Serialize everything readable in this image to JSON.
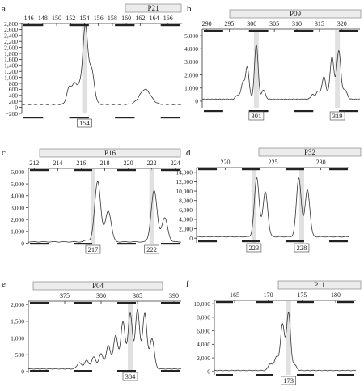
{
  "chart_data": [
    {
      "panel_label": "a",
      "type": "line",
      "marker": "P21",
      "xlim": [
        145,
        168
      ],
      "ylim": [
        -200,
        2800
      ],
      "x_ticks": [
        146,
        148,
        150,
        152,
        154,
        156,
        158,
        160,
        162,
        164,
        166
      ],
      "y_ticks": [
        -200,
        0,
        200,
        400,
        600,
        800,
        1000,
        1200,
        1400,
        1600,
        1800,
        2000,
        2200,
        2400,
        2600,
        2800
      ],
      "y_tick_labels": [
        "−200",
        "0",
        "200",
        "400",
        "600",
        "800",
        "1,000",
        "1,200",
        "1,400",
        "1,600",
        "1,800",
        "2,000",
        "2,200",
        "2,400",
        "2,600",
        "2,800"
      ],
      "peaks": [
        {
          "x": 151.8,
          "y": 550,
          "w": 0.35
        },
        {
          "x": 152.6,
          "y": 650,
          "w": 0.35
        },
        {
          "x": 153.3,
          "y": 500,
          "w": 0.3
        },
        {
          "x": 154.1,
          "y": 2550,
          "w": 0.35
        },
        {
          "x": 155.0,
          "y": 1150,
          "w": 0.4
        },
        {
          "x": 162.7,
          "y": 500,
          "w": 0.8
        }
      ],
      "baseline": 100,
      "allele_calls": [
        154
      ]
    },
    {
      "panel_label": "b",
      "type": "line",
      "marker": "P09",
      "xlim": [
        289,
        324
      ],
      "ylim": [
        -500,
        5500
      ],
      "x_ticks": [
        290,
        295,
        300,
        305,
        310,
        315,
        320
      ],
      "y_ticks": [
        0,
        1000,
        2000,
        3000,
        4000,
        5000
      ],
      "y_tick_labels": [
        "0",
        "1,000",
        "2,000",
        "3,000",
        "4,000",
        "5,000"
      ],
      "peaks": [
        {
          "x": 296.8,
          "y": 300,
          "w": 0.4
        },
        {
          "x": 298.0,
          "y": 1200,
          "w": 0.4
        },
        {
          "x": 299.0,
          "y": 2400,
          "w": 0.4
        },
        {
          "x": 301.0,
          "y": 4200,
          "w": 0.4
        },
        {
          "x": 302.6,
          "y": 700,
          "w": 0.4
        },
        {
          "x": 313.5,
          "y": 350,
          "w": 0.4
        },
        {
          "x": 314.7,
          "y": 600,
          "w": 0.4
        },
        {
          "x": 316.0,
          "y": 1700,
          "w": 0.45
        },
        {
          "x": 317.8,
          "y": 3200,
          "w": 0.45
        },
        {
          "x": 319.3,
          "y": 3700,
          "w": 0.45
        },
        {
          "x": 320.7,
          "y": 700,
          "w": 0.45
        }
      ],
      "baseline": 150,
      "allele_calls": [
        301,
        319
      ]
    },
    {
      "panel_label": "c",
      "type": "line",
      "marker": "P16",
      "xlim": [
        211.5,
        224.5
      ],
      "ylim": [
        -100,
        6300
      ],
      "x_ticks": [
        212,
        214,
        216,
        218,
        220,
        222,
        224
      ],
      "y_ticks": [
        0,
        1000,
        2000,
        3000,
        4000,
        5000,
        6000
      ],
      "y_tick_labels": [
        "0",
        "1,000",
        "2,000",
        "3,000",
        "4,000",
        "5,000",
        "6,000"
      ],
      "peaks": [
        {
          "x": 216.5,
          "y": 150,
          "w": 0.2
        },
        {
          "x": 217.4,
          "y": 5100,
          "w": 0.25
        },
        {
          "x": 218.3,
          "y": 2600,
          "w": 0.25
        },
        {
          "x": 222.2,
          "y": 4300,
          "w": 0.25
        },
        {
          "x": 223.1,
          "y": 2000,
          "w": 0.25
        }
      ],
      "baseline": 120,
      "allele_calls": [
        217,
        222
      ]
    },
    {
      "panel_label": "d",
      "type": "line",
      "marker": "P32",
      "xlim": [
        217,
        233
      ],
      "ylim": [
        -1000,
        15000
      ],
      "x_ticks": [
        220,
        225,
        230
      ],
      "y_ticks": [
        0,
        2000,
        4000,
        6000,
        8000,
        10000,
        12000,
        14000
      ],
      "y_tick_labels": [
        "0",
        "2,000",
        "4,000",
        "6,000",
        "8,000",
        "10,000",
        "12,000",
        "14,000"
      ],
      "peaks": [
        {
          "x": 223.3,
          "y": 12500,
          "w": 0.25
        },
        {
          "x": 224.2,
          "y": 9500,
          "w": 0.25
        },
        {
          "x": 227.7,
          "y": 12500,
          "w": 0.25
        },
        {
          "x": 228.6,
          "y": 10000,
          "w": 0.25
        }
      ],
      "baseline": 300,
      "allele_calls": [
        223,
        228
      ]
    },
    {
      "panel_label": "e",
      "type": "line",
      "marker": "P04",
      "xlim": [
        370,
        391
      ],
      "ylim": [
        -50,
        2100
      ],
      "x_ticks": [
        375,
        380,
        385,
        390
      ],
      "y_ticks": [
        0,
        500,
        1000,
        1500,
        2000
      ],
      "y_tick_labels": [
        "0",
        "500",
        "1,000",
        "1,500",
        "2,000"
      ],
      "peaks": [
        {
          "x": 377.0,
          "y": 180,
          "w": 0.3
        },
        {
          "x": 378.0,
          "y": 250,
          "w": 0.3
        },
        {
          "x": 379.0,
          "y": 350,
          "w": 0.3
        },
        {
          "x": 380.0,
          "y": 450,
          "w": 0.3
        },
        {
          "x": 381.0,
          "y": 700,
          "w": 0.3
        },
        {
          "x": 382.0,
          "y": 1000,
          "w": 0.3
        },
        {
          "x": 383.0,
          "y": 1400,
          "w": 0.3
        },
        {
          "x": 384.0,
          "y": 1650,
          "w": 0.3
        },
        {
          "x": 385.0,
          "y": 1750,
          "w": 0.3
        },
        {
          "x": 386.0,
          "y": 1650,
          "w": 0.3
        },
        {
          "x": 387.0,
          "y": 900,
          "w": 0.3
        }
      ],
      "baseline": 80,
      "allele_calls": [
        384
      ]
    },
    {
      "panel_label": "f",
      "type": "line",
      "marker": "P11",
      "xlim": [
        162,
        183
      ],
      "ylim": [
        -500,
        10500
      ],
      "x_ticks": [
        165,
        170,
        175,
        180
      ],
      "y_ticks": [
        0,
        2000,
        4000,
        6000,
        8000,
        10000
      ],
      "y_tick_labels": [
        "0",
        "2,000",
        "4,000",
        "6,000",
        "8,000",
        "10,000"
      ],
      "peaks": [
        {
          "x": 170.3,
          "y": 1000,
          "w": 0.3
        },
        {
          "x": 171.2,
          "y": 2000,
          "w": 0.3
        },
        {
          "x": 172.1,
          "y": 6800,
          "w": 0.3
        },
        {
          "x": 173.0,
          "y": 8500,
          "w": 0.3
        },
        {
          "x": 173.9,
          "y": 800,
          "w": 0.3
        }
      ],
      "baseline": 150,
      "allele_calls": [
        173
      ]
    }
  ]
}
